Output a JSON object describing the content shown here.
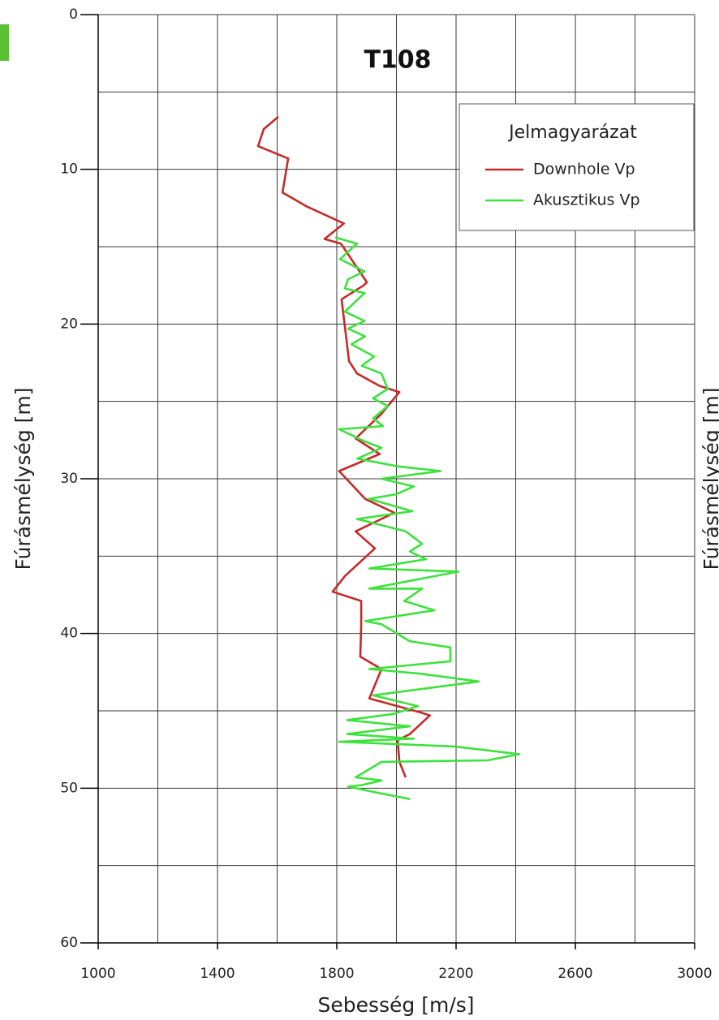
{
  "chart_data": {
    "type": "line",
    "title": "T108",
    "xlabel": "Sebesség [m/s]",
    "ylabel": "Fúrásmélység [m]",
    "xlim": [
      1000,
      3000
    ],
    "ylim": [
      0,
      60
    ],
    "y_inverted": true,
    "xticks": [
      1000,
      1400,
      1800,
      2200,
      2600,
      3000
    ],
    "xminor": [
      1200,
      1600,
      2000,
      2400,
      2800
    ],
    "yticks": [
      0,
      10,
      20,
      30,
      40,
      50,
      60
    ],
    "yminor": [
      5,
      15,
      25,
      35,
      45,
      55
    ],
    "grid": true,
    "legend_title": "Jelmagyarázat",
    "legend_position": "upper right",
    "series": [
      {
        "name": "Downhole Vp",
        "color": "#c62a28",
        "x": [
          1604,
          1555,
          1536,
          1637,
          1618,
          1699,
          1824,
          1759,
          1814,
          1901,
          1890,
          1816,
          1841,
          1868,
          1944,
          2010,
          1950,
          1863,
          1944,
          1808,
          1895,
          1993,
          1863,
          1928,
          1827,
          1786,
          1882,
          1882,
          1879,
          1950,
          1909,
          2080,
          2112,
          2045,
          2004,
          2010,
          2031
        ],
        "y": [
          6.6,
          7.4,
          8.5,
          9.3,
          11.5,
          12.4,
          13.5,
          14.5,
          14.8,
          17.3,
          17.5,
          18.4,
          22.4,
          23.2,
          24.0,
          24.4,
          25.8,
          27.4,
          28.4,
          29.5,
          31.3,
          32.2,
          33.4,
          34.5,
          36.3,
          37.3,
          37.9,
          39.4,
          41.5,
          42.3,
          44.2,
          45.1,
          45.3,
          46.5,
          46.9,
          48.3,
          49.3
        ]
      },
      {
        "name": "Akusztikus Vp",
        "color": "#3de23d",
        "x": [
          1795,
          1868,
          1811,
          1862,
          1893,
          1838,
          1827,
          1893,
          1827,
          1893,
          1838,
          1895,
          1849,
          1925,
          1884,
          1950,
          1971,
          1922,
          1971,
          1922,
          1955,
          1808,
          1895,
          1950,
          1869,
          2004,
          2148,
          1950,
          2058,
          1999,
          1908,
          2053,
          1868,
          2031,
          2086,
          2045,
          2099,
          1909,
          2208,
          1909,
          2086,
          2026,
          2127,
          1895,
          1950,
          2045,
          2181,
          2181,
          1909,
          2080,
          2276,
          1922,
          2072,
          1990,
          1835,
          2045,
          1835,
          2058,
          1808,
          2195,
          2412,
          2306,
          1950,
          1863,
          1950,
          1884,
          1838,
          1939,
          2045
        ],
        "y": [
          14.4,
          14.8,
          15.8,
          16.3,
          16.6,
          17.1,
          17.7,
          18.0,
          19.2,
          19.8,
          20.3,
          20.8,
          21.3,
          22.1,
          22.7,
          23.2,
          24.2,
          24.8,
          25.3,
          26.1,
          26.6,
          26.8,
          27.6,
          28.0,
          28.7,
          29.2,
          29.5,
          30.0,
          30.5,
          31.0,
          31.3,
          32.1,
          32.6,
          33.4,
          34.2,
          34.7,
          35.2,
          35.8,
          36.0,
          37.1,
          37.1,
          37.9,
          38.5,
          39.2,
          39.4,
          40.5,
          40.9,
          41.8,
          42.3,
          42.6,
          43.1,
          44.0,
          44.7,
          45.2,
          45.6,
          46.0,
          46.5,
          46.8,
          47.0,
          47.3,
          47.8,
          48.2,
          48.3,
          49.3,
          49.5,
          49.8,
          49.9,
          50.3,
          50.7
        ]
      }
    ]
  },
  "neighbor_panel": {
    "ylabel": "Fúrásmélység [m]"
  }
}
